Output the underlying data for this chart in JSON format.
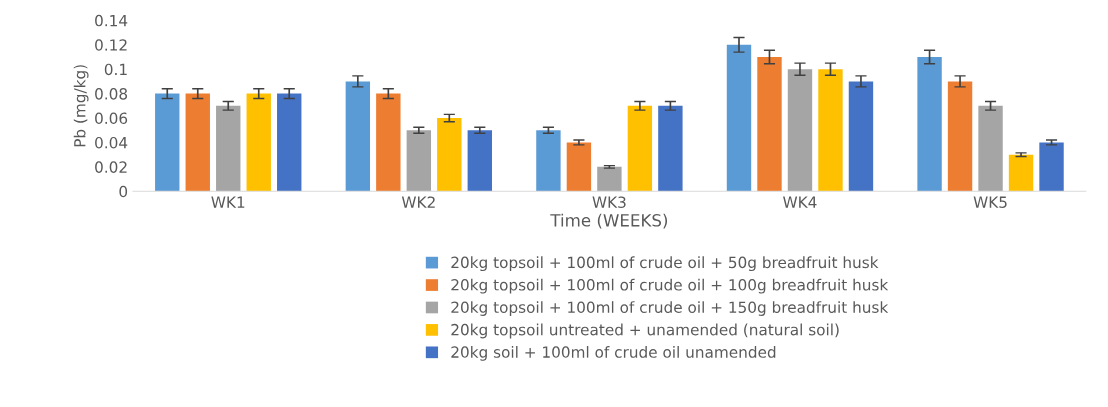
{
  "chart_data": {
    "type": "bar",
    "xlabel": "Time (WEEKS)",
    "ylabel": "Pb (mg/kg)",
    "categories": [
      "WK1",
      "WK2",
      "WK3",
      "WK4",
      "WK5"
    ],
    "ylim": [
      0,
      0.14
    ],
    "yticks": [
      {
        "value": 0,
        "label": "0"
      },
      {
        "value": 0.02,
        "label": "0.02"
      },
      {
        "value": 0.04,
        "label": "0.04"
      },
      {
        "value": 0.06,
        "label": "0.06"
      },
      {
        "value": 0.08,
        "label": "0.08"
      },
      {
        "value": 0.1,
        "label": "0.1"
      },
      {
        "value": 0.12,
        "label": "0.12"
      },
      {
        "value": 0.14,
        "label": "0.14"
      }
    ],
    "grid": false,
    "legend": "bottom",
    "series": [
      {
        "name": "20kg topsoil + 100ml of crude oil + 50g breadfruit husk",
        "color": "#5b9bd5",
        "values": [
          0.08,
          0.09,
          0.05,
          0.12,
          0.11
        ],
        "errors": [
          0.004,
          0.0045,
          0.0025,
          0.006,
          0.0055
        ]
      },
      {
        "name": "20kg topsoil + 100ml of crude oil + 100g breadfruit husk",
        "color": "#ed7d31",
        "values": [
          0.08,
          0.08,
          0.04,
          0.11,
          0.09
        ],
        "errors": [
          0.004,
          0.004,
          0.002,
          0.0055,
          0.0045
        ]
      },
      {
        "name": "20kg topsoil + 100ml of crude oil + 150g breadfruit husk",
        "color": "#a5a5a5",
        "values": [
          0.07,
          0.05,
          0.02,
          0.1,
          0.07
        ],
        "errors": [
          0.0035,
          0.0025,
          0.001,
          0.005,
          0.0035
        ]
      },
      {
        "name": "20kg topsoil untreated + unamended (natural soil)",
        "color": "#ffc000",
        "values": [
          0.08,
          0.06,
          0.07,
          0.1,
          0.03
        ],
        "errors": [
          0.004,
          0.003,
          0.0035,
          0.005,
          0.0015
        ]
      },
      {
        "name": "20kg soil + 100ml of crude oil unamended",
        "color": "#4472c4",
        "values": [
          0.08,
          0.05,
          0.07,
          0.09,
          0.04
        ],
        "errors": [
          0.004,
          0.0025,
          0.0035,
          0.0045,
          0.002
        ]
      }
    ]
  }
}
